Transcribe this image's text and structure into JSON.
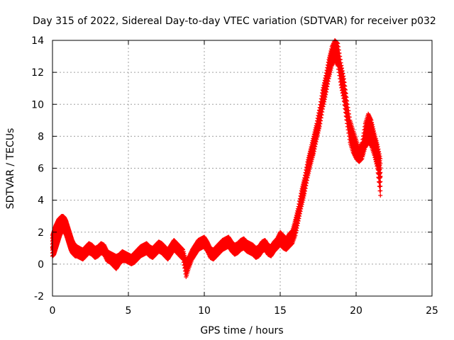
{
  "colors": {
    "series": "#ff0000",
    "frame": "#000000",
    "grid": "#a0a0a0"
  },
  "chart_data": {
    "type": "scatter",
    "title": "Day 315 of 2022, Sidereal Day-to-day VTEC variation (SDTVAR) for receiver p032",
    "xlabel": "GPS time / hours",
    "ylabel": "SDTVAR / TECUs",
    "xlim": [
      0,
      25
    ],
    "ylim": [
      -2,
      14
    ],
    "xticks": [
      0,
      5,
      10,
      15,
      20,
      25
    ],
    "yticks": [
      -2,
      0,
      2,
      4,
      6,
      8,
      10,
      12,
      14
    ],
    "xtick_labels": [
      "0",
      "5",
      "10",
      "15",
      "20",
      "25"
    ],
    "ytick_labels": [
      "-2",
      "0",
      "2",
      "4",
      "6",
      "8",
      "10",
      "12",
      "14"
    ],
    "grid": true,
    "marker": "+",
    "series": [
      {
        "name": "SDTVAR",
        "x": [
          0.0,
          0.1,
          0.2,
          0.3,
          0.4,
          0.5,
          0.6,
          0.7,
          0.8,
          0.9,
          1.0,
          1.1,
          1.2,
          1.3,
          1.4,
          1.5,
          1.6,
          1.8,
          2.0,
          2.2,
          2.4,
          2.6,
          2.8,
          3.0,
          3.2,
          3.4,
          3.6,
          3.8,
          4.0,
          4.2,
          4.4,
          4.6,
          4.8,
          5.0,
          5.2,
          5.4,
          5.6,
          5.8,
          6.0,
          6.2,
          6.4,
          6.6,
          6.8,
          7.0,
          7.2,
          7.4,
          7.6,
          7.8,
          8.0,
          8.2,
          8.4,
          8.6,
          8.8,
          9.0,
          9.2,
          9.4,
          9.6,
          9.8,
          10.0,
          10.2,
          10.4,
          10.6,
          10.8,
          11.0,
          11.2,
          11.4,
          11.6,
          11.8,
          12.0,
          12.2,
          12.4,
          12.6,
          12.8,
          13.0,
          13.2,
          13.4,
          13.6,
          13.8,
          14.0,
          14.2,
          14.4,
          14.6,
          14.8,
          15.0,
          15.2,
          15.4,
          15.6,
          15.8,
          16.0,
          16.2,
          16.4,
          16.6,
          16.8,
          17.0,
          17.2,
          17.4,
          17.6,
          17.8,
          18.0,
          18.2,
          18.4,
          18.6,
          18.8,
          19.0,
          19.2,
          19.4,
          19.6,
          19.8,
          20.0,
          20.2,
          20.4,
          20.6,
          20.8,
          21.0,
          21.2,
          21.4,
          21.6
        ],
        "values": [
          1.0,
          1.2,
          1.5,
          1.8,
          2.2,
          2.5,
          2.7,
          2.8,
          2.7,
          2.5,
          2.2,
          1.9,
          1.5,
          1.2,
          1.0,
          0.9,
          0.8,
          0.7,
          0.6,
          0.8,
          1.0,
          0.9,
          0.7,
          0.8,
          1.0,
          0.9,
          0.5,
          0.4,
          0.3,
          0.2,
          0.3,
          0.5,
          0.4,
          0.3,
          0.2,
          0.4,
          0.6,
          0.8,
          0.9,
          1.0,
          0.8,
          0.7,
          0.9,
          1.1,
          1.0,
          0.8,
          0.6,
          0.9,
          1.2,
          1.0,
          0.8,
          0.6,
          -0.3,
          0.2,
          0.6,
          0.9,
          1.2,
          1.3,
          1.4,
          1.1,
          0.7,
          0.6,
          0.8,
          1.0,
          1.2,
          1.3,
          1.4,
          1.1,
          0.9,
          1.0,
          1.2,
          1.3,
          1.1,
          1.0,
          0.9,
          0.7,
          0.8,
          1.1,
          1.2,
          0.9,
          0.8,
          1.1,
          1.3,
          1.6,
          1.4,
          1.2,
          1.5,
          1.7,
          2.3,
          3.2,
          4.2,
          5.0,
          6.0,
          6.8,
          7.5,
          8.3,
          9.2,
          10.3,
          11.2,
          12.2,
          13.0,
          13.6,
          13.2,
          12.0,
          11.0,
          9.6,
          8.4,
          7.8,
          7.2,
          6.8,
          7.0,
          8.0,
          8.6,
          8.3,
          7.5,
          6.8,
          5.5
        ],
        "lower": [
          0.5,
          0.6,
          0.9,
          1.2,
          1.5,
          1.8,
          2.0,
          2.1,
          2.0,
          1.8,
          1.5,
          1.2,
          0.9,
          0.7,
          0.6,
          0.5,
          0.5,
          0.4,
          0.3,
          0.5,
          0.7,
          0.6,
          0.4,
          0.5,
          0.7,
          0.6,
          0.2,
          0.1,
          -0.1,
          -0.3,
          0.0,
          0.2,
          0.2,
          0.1,
          0.0,
          0.1,
          0.3,
          0.5,
          0.6,
          0.7,
          0.5,
          0.4,
          0.6,
          0.8,
          0.7,
          0.5,
          0.3,
          0.6,
          0.9,
          0.7,
          0.5,
          0.3,
          -0.8,
          -0.2,
          0.3,
          0.6,
          0.9,
          1.0,
          1.1,
          0.8,
          0.4,
          0.3,
          0.5,
          0.7,
          0.9,
          1.0,
          1.1,
          0.8,
          0.6,
          0.7,
          0.9,
          1.0,
          0.8,
          0.7,
          0.6,
          0.4,
          0.5,
          0.8,
          0.9,
          0.6,
          0.5,
          0.8,
          1.0,
          1.2,
          1.0,
          0.9,
          1.1,
          1.3,
          1.8,
          2.7,
          3.6,
          4.4,
          5.4,
          6.2,
          6.9,
          7.8,
          8.6,
          9.7,
          10.6,
          11.6,
          12.4,
          12.8,
          12.4,
          11.2,
          10.2,
          8.8,
          7.6,
          7.0,
          6.6,
          6.4,
          6.6,
          7.3,
          7.6,
          7.4,
          6.8,
          6.0,
          4.3
        ],
        "upper": [
          1.8,
          2.1,
          2.4,
          2.6,
          2.8,
          2.9,
          3.0,
          3.0,
          2.9,
          2.7,
          2.4,
          2.1,
          1.8,
          1.5,
          1.3,
          1.2,
          1.1,
          1.0,
          0.9,
          1.1,
          1.3,
          1.2,
          1.0,
          1.1,
          1.3,
          1.2,
          0.8,
          0.7,
          0.6,
          0.5,
          0.6,
          0.8,
          0.7,
          0.6,
          0.5,
          0.7,
          0.9,
          1.1,
          1.2,
          1.3,
          1.1,
          1.0,
          1.2,
          1.4,
          1.3,
          1.1,
          0.9,
          1.2,
          1.5,
          1.3,
          1.1,
          0.9,
          0.2,
          0.5,
          0.9,
          1.2,
          1.5,
          1.6,
          1.7,
          1.4,
          1.0,
          0.9,
          1.1,
          1.3,
          1.5,
          1.6,
          1.7,
          1.4,
          1.2,
          1.3,
          1.5,
          1.6,
          1.4,
          1.3,
          1.2,
          1.0,
          1.1,
          1.4,
          1.5,
          1.2,
          1.1,
          1.4,
          1.6,
          2.0,
          1.8,
          1.6,
          1.9,
          2.1,
          2.8,
          3.6,
          4.6,
          5.4,
          6.4,
          7.2,
          8.0,
          8.8,
          9.8,
          10.9,
          11.8,
          12.8,
          13.6,
          14.0,
          13.8,
          12.6,
          11.6,
          10.2,
          9.0,
          8.4,
          7.8,
          7.2,
          7.6,
          8.8,
          9.4,
          9.0,
          8.2,
          7.5,
          6.6
        ]
      }
    ]
  }
}
